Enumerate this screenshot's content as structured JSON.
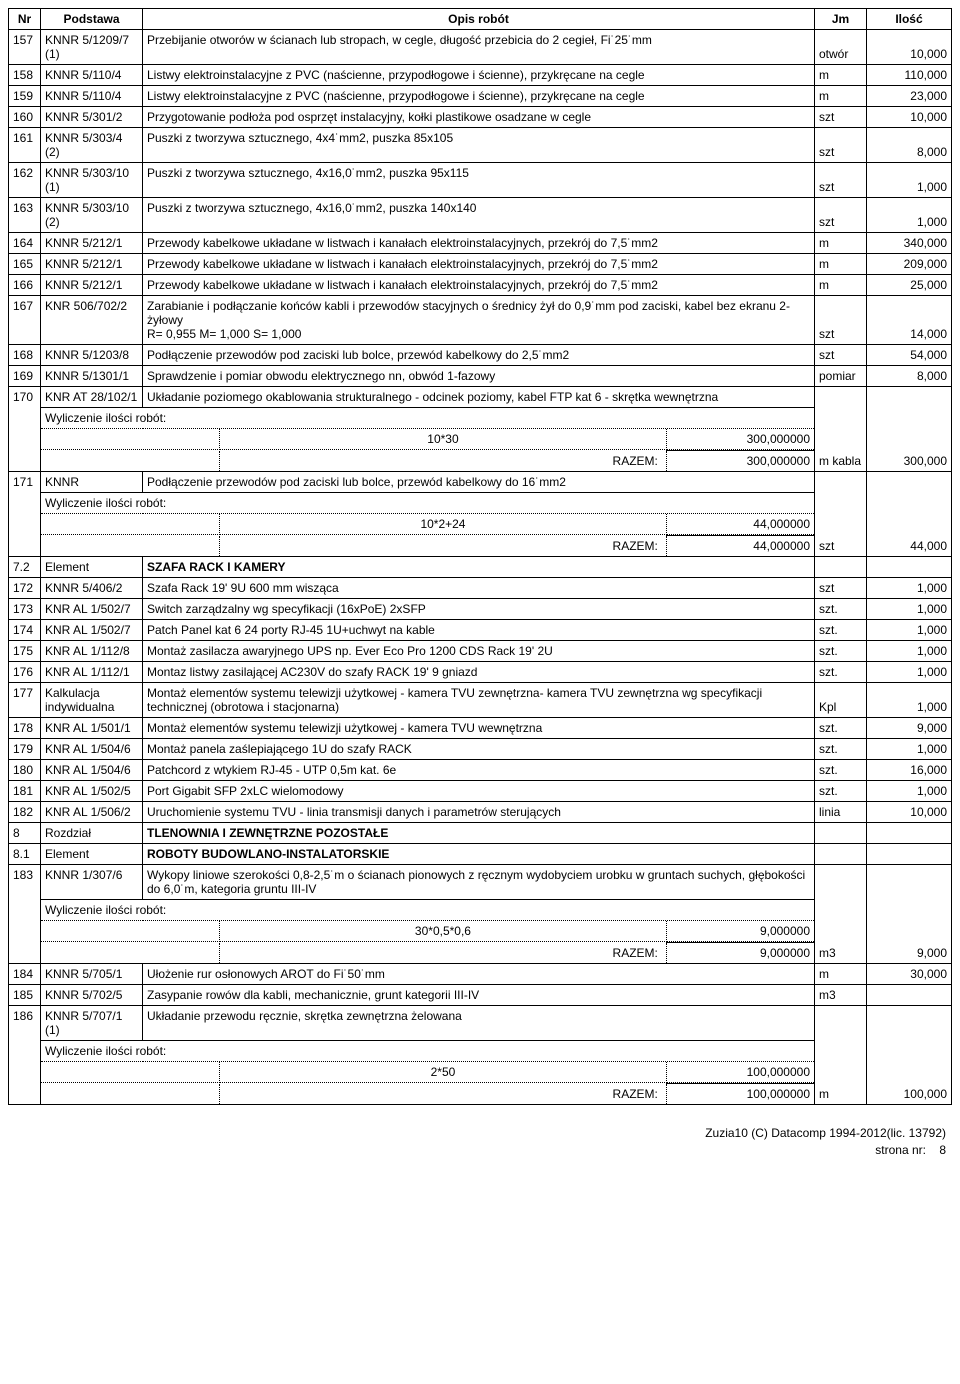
{
  "headers": {
    "nr": "Nr",
    "podstawa": "Podstawa",
    "opis": "Opis robót",
    "jm": "Jm",
    "ilosc": "Ilość"
  },
  "rows": [
    {
      "type": "simple",
      "nr": "157",
      "podstawa": "KNNR 5/1209/7 (1)",
      "opis": "Przebijanie otworów w ścianach lub stropach, w cegle, długość przebicia do 2 cegieł, Fi˙25˙mm",
      "jm": "otwór",
      "ilosc": "10,000"
    },
    {
      "type": "simple",
      "nr": "158",
      "podstawa": "KNNR 5/110/4",
      "opis": "Listwy elektroinstalacyjne z PVC (naścienne, przypodłogowe i ścienne), przykręcane na cegle",
      "jm": "m",
      "ilosc": "110,000"
    },
    {
      "type": "simple",
      "nr": "159",
      "podstawa": "KNNR 5/110/4",
      "opis": "Listwy elektroinstalacyjne z PVC (naścienne, przypodłogowe i ścienne), przykręcane na cegle",
      "jm": "m",
      "ilosc": "23,000"
    },
    {
      "type": "simple",
      "nr": "160",
      "podstawa": "KNNR 5/301/2",
      "opis": "Przygotowanie podłoża pod osprzęt instalacyjny, kołki plastikowe osadzane w cegle",
      "jm": "szt",
      "ilosc": "10,000"
    },
    {
      "type": "simple",
      "nr": "161",
      "podstawa": "KNNR 5/303/4 (2)",
      "opis": "Puszki z tworzywa sztucznego, 4x4˙mm2, puszka 85x105",
      "jm": "szt",
      "ilosc": "8,000"
    },
    {
      "type": "simple",
      "nr": "162",
      "podstawa": "KNNR 5/303/10 (1)",
      "opis": "Puszki z tworzywa sztucznego, 4x16,0˙mm2, puszka 95x115",
      "jm": "szt",
      "ilosc": "1,000"
    },
    {
      "type": "simple",
      "nr": "163",
      "podstawa": "KNNR 5/303/10 (2)",
      "opis": "Puszki z tworzywa sztucznego, 4x16,0˙mm2, puszka 140x140",
      "jm": "szt",
      "ilosc": "1,000"
    },
    {
      "type": "simple",
      "nr": "164",
      "podstawa": "KNNR 5/212/1",
      "opis": "Przewody kabelkowe układane w listwach i kanałach elektroinstalacyjnych, przekrój do 7,5˙mm2",
      "jm": "m",
      "ilosc": "340,000"
    },
    {
      "type": "simple",
      "nr": "165",
      "podstawa": "KNNR 5/212/1",
      "opis": "Przewody kabelkowe układane w listwach i kanałach elektroinstalacyjnych, przekrój do 7,5˙mm2",
      "jm": "m",
      "ilosc": "209,000"
    },
    {
      "type": "simple",
      "nr": "166",
      "podstawa": "KNNR 5/212/1",
      "opis": "Przewody kabelkowe układane w listwach i kanałach elektroinstalacyjnych, przekrój do 7,5˙mm2",
      "jm": "m",
      "ilosc": "25,000"
    },
    {
      "type": "simple",
      "nr": "167",
      "podstawa": "KNR 506/702/2",
      "opis": "Zarabianie i podłączanie końców kabli i przewodów stacyjnych o średnicy żył do 0,9˙mm pod zaciski, kabel bez ekranu 2-żyłowy\nR= 0,955   M= 1,000   S= 1,000",
      "jm": "szt",
      "ilosc": "14,000"
    },
    {
      "type": "simple",
      "nr": "168",
      "podstawa": "KNNR 5/1203/8",
      "opis": "Podłączenie przewodów pod zaciski lub bolce, przewód kabelkowy do 2,5˙mm2",
      "jm": "szt",
      "ilosc": "54,000"
    },
    {
      "type": "simple",
      "nr": "169",
      "podstawa": "KNNR 5/1301/1",
      "opis": "Sprawdzenie i pomiar obwodu elektrycznego nn, obwód 1-fazowy",
      "jm": "pomiar",
      "ilosc": "8,000"
    },
    {
      "type": "calc",
      "nr": "170",
      "podstawa": "KNR AT 28/102/1",
      "opis": "Układanie poziomego okablowania strukturalnego - odcinek poziomy, kabel FTP kat 6 - skrętka wewnętrzna",
      "calc_label": "Wyliczenie ilości robót:",
      "expr": "10*30",
      "expr_val": "300,000000",
      "razem_label": "RAZEM:",
      "razem_val": "300,000000",
      "jm": "m kabla",
      "ilosc": "300,000"
    },
    {
      "type": "calc",
      "nr": "171",
      "podstawa": "KNNR",
      "opis": "Podłączenie przewodów pod zaciski lub bolce, przewód kabelkowy do 16˙mm2",
      "calc_label": "Wyliczenie ilości robót:",
      "expr": "10*2+24",
      "expr_val": "44,000000",
      "razem_label": "RAZEM:",
      "razem_val": "44,000000",
      "jm": "szt",
      "ilosc": "44,000"
    },
    {
      "type": "section",
      "nr": "7.2",
      "podstawa": "Element",
      "opis": "SZAFA RACK I KAMERY"
    },
    {
      "type": "simple",
      "nr": "172",
      "podstawa": "KNNR 5/406/2",
      "opis": "Szafa Rack 19' 9U 600 mm wisząca",
      "jm": "szt",
      "ilosc": "1,000"
    },
    {
      "type": "simple",
      "nr": "173",
      "podstawa": "KNR AL 1/502/7",
      "opis": "Switch zarządzalny wg specyfikacji (16xPoE) 2xSFP",
      "jm": "szt.",
      "ilosc": "1,000"
    },
    {
      "type": "simple",
      "nr": "174",
      "podstawa": "KNR AL 1/502/7",
      "opis": "Patch Panel kat 6 24 porty RJ-45 1U+uchwyt na kable",
      "jm": "szt.",
      "ilosc": "1,000"
    },
    {
      "type": "simple",
      "nr": "175",
      "podstawa": "KNR AL 1/112/8",
      "opis": "Montaż zasilacza awaryjnego UPS np. Ever Eco Pro 1200 CDS Rack 19' 2U",
      "jm": "szt.",
      "ilosc": "1,000"
    },
    {
      "type": "simple",
      "nr": "176",
      "podstawa": "KNR AL 1/112/1",
      "opis": "Montaz listwy zasilającej AC230V do szafy RACK 19' 9 gniazd",
      "jm": "szt.",
      "ilosc": "1,000"
    },
    {
      "type": "simple",
      "nr": "177",
      "podstawa": "Kalkulacja indywidualna",
      "opis": "Montaż elementów systemu telewizji użytkowej - kamera TVU zewnętrzna- kamera TVU zewnętrzna wg specyfikacji technicznej (obrotowa i stacjonarna)",
      "jm": "Kpl",
      "ilosc": "1,000"
    },
    {
      "type": "simple",
      "nr": "178",
      "podstawa": "KNR AL 1/501/1",
      "opis": "Montaż elementów systemu telewizji użytkowej - kamera TVU wewnętrzna",
      "jm": "szt.",
      "ilosc": "9,000"
    },
    {
      "type": "simple",
      "nr": "179",
      "podstawa": "KNR AL 1/504/6",
      "opis": "Montaż panela zaślepiającego 1U do szafy RACK",
      "jm": "szt.",
      "ilosc": "1,000"
    },
    {
      "type": "simple",
      "nr": "180",
      "podstawa": "KNR AL 1/504/6",
      "opis": "Patchcord z wtykiem RJ-45 - UTP 0,5m kat. 6e",
      "jm": "szt.",
      "ilosc": "16,000"
    },
    {
      "type": "simple",
      "nr": "181",
      "podstawa": "KNR AL 1/502/5",
      "opis": "Port Gigabit SFP 2xLC wielomodowy",
      "jm": "szt.",
      "ilosc": "1,000"
    },
    {
      "type": "simple",
      "nr": "182",
      "podstawa": "KNR AL 1/506/2",
      "opis": "Uruchomienie systemu TVU - linia transmisji danych i parametrów sterujących",
      "jm": "linia",
      "ilosc": "10,000"
    },
    {
      "type": "section",
      "nr": "8",
      "podstawa": "Rozdział",
      "opis": "TLENOWNIA I ZEWNĘTRZNE POZOSTAŁE"
    },
    {
      "type": "section",
      "nr": "8.1",
      "podstawa": "Element",
      "opis": "ROBOTY BUDOWLANO-INSTALATORSKIE"
    },
    {
      "type": "calc",
      "nr": "183",
      "podstawa": "KNNR 1/307/6",
      "opis": "Wykopy liniowe szerokości 0,8-2,5˙m o ścianach pionowych z ręcznym wydobyciem urobku w gruntach suchych, głębokości do 6,0˙m, kategoria gruntu III-IV",
      "calc_label": "Wyliczenie ilości robót:",
      "expr": "30*0,5*0,6",
      "expr_val": "9,000000",
      "razem_label": "RAZEM:",
      "razem_val": "9,000000",
      "jm": "m3",
      "ilosc": "9,000"
    },
    {
      "type": "simple",
      "nr": "184",
      "podstawa": "KNNR 5/705/1",
      "opis": "Ułożenie rur osłonowych AROT do Fi˙50˙mm",
      "jm": "m",
      "ilosc": "30,000"
    },
    {
      "type": "simple",
      "nr": "185",
      "podstawa": "KNNR 5/702/5",
      "opis": "Zasypanie rowów dla kabli, mechanicznie, grunt kategorii III-IV",
      "jm": "m3",
      "ilosc": ""
    },
    {
      "type": "calc",
      "nr": "186",
      "podstawa": "KNNR 5/707/1 (1)",
      "opis": "Układanie przewodu ręcznie, skrętka zewnętrzna żelowana",
      "calc_label": "Wyliczenie ilości robót:",
      "expr": "2*50",
      "expr_val": "100,000000",
      "razem_label": "RAZEM:",
      "razem_val": "100,000000",
      "jm": "m",
      "ilosc": "100,000"
    }
  ],
  "footer": {
    "line1": "Zuzia10 (C) Datacomp 1994-2012(lic. 13792)",
    "line2_label": "strona nr:",
    "line2_page": "8"
  }
}
